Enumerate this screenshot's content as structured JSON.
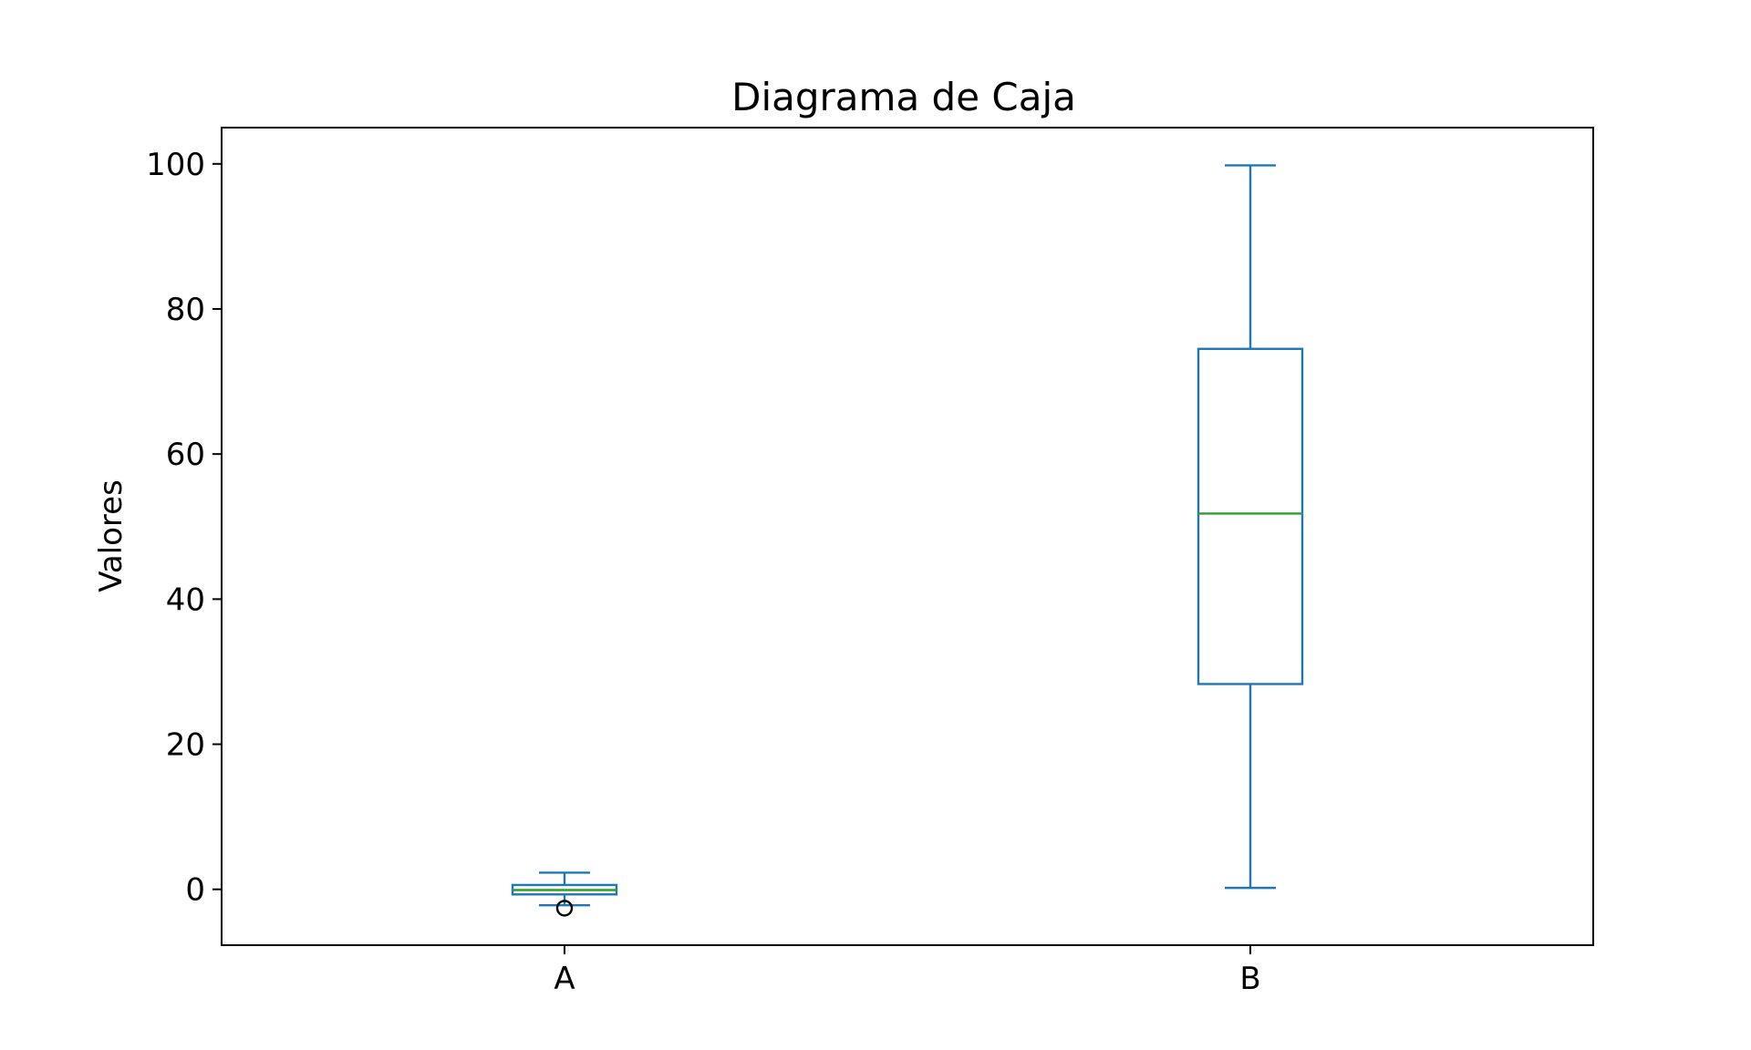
{
  "chart_data": {
    "type": "box",
    "title": "Diagrama de Caja",
    "xlabel": "",
    "ylabel": "Valores",
    "categories": [
      "A",
      "B"
    ],
    "ylim": [
      -7.7,
      105
    ],
    "yticks": [
      0,
      20,
      40,
      60,
      80,
      100
    ],
    "grid": false,
    "series": [
      {
        "category": "A",
        "whisker_low": -2.2,
        "q1": -0.7,
        "median": -0.1,
        "q3": 0.6,
        "whisker_high": 2.3,
        "outliers": [
          -2.6
        ]
      },
      {
        "category": "B",
        "whisker_low": 0.2,
        "q1": 28.3,
        "median": 51.8,
        "q3": 74.5,
        "whisker_high": 99.8,
        "outliers": []
      }
    ],
    "colors": {
      "box": "#1f77b4",
      "median": "#2ca02c",
      "outlier": "#000000",
      "axes": "#000000"
    }
  }
}
